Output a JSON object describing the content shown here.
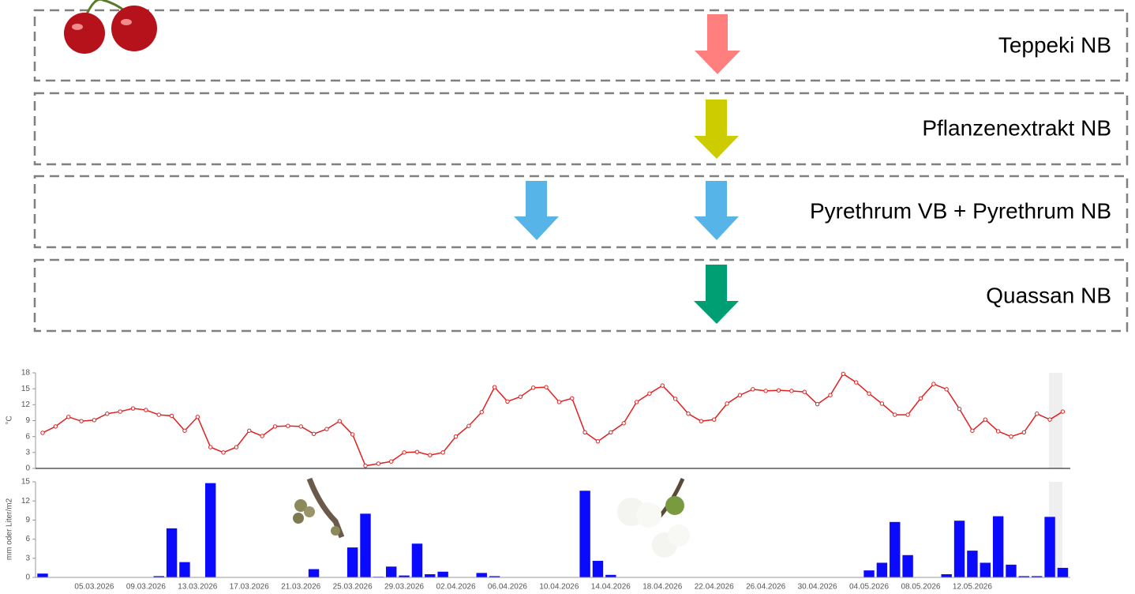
{
  "treatments": [
    {
      "label": "Teppeki NB"
    },
    {
      "label": "Pflanzenextrakt NB"
    },
    {
      "label": "Pyrethrum VB + Pyrethrum NB"
    },
    {
      "label": "Quassan NB"
    }
  ],
  "chart_data": [
    {
      "type": "line",
      "y_label": "°C",
      "color": "#e02020",
      "values": [
        6.7,
        7.9,
        9.7,
        8.9,
        9.1,
        10.3,
        10.7,
        11.3,
        11.0,
        10.1,
        9.9,
        7.1,
        9.7,
        4.0,
        3.0,
        4.0,
        7.1,
        6.1,
        7.9,
        8.0,
        7.9,
        6.5,
        7.4,
        8.9,
        6.4,
        0.5,
        0.9,
        1.3,
        3.0,
        3.1,
        2.5,
        3.0,
        6.0,
        8.0,
        10.6,
        15.3,
        12.6,
        13.5,
        15.2,
        15.3,
        12.5,
        13.2,
        6.8,
        5.1,
        6.8,
        8.5,
        12.5,
        14.1,
        15.6,
        13.1,
        10.3,
        8.9,
        9.2,
        12.2,
        13.8,
        14.9,
        14.6,
        14.7,
        14.6,
        14.4,
        12.1,
        13.8,
        17.8,
        16.2,
        14.1,
        12.2,
        10.1,
        10.1,
        13.2,
        15.9,
        14.9,
        11.2,
        7.1,
        9.2,
        7.0,
        6.0,
        6.8,
        10.3,
        9.2,
        10.7
      ],
      "ylim": [
        0,
        18
      ],
      "yticks": [
        0,
        3,
        6,
        9,
        12,
        15,
        18
      ]
    },
    {
      "type": "bar",
      "y_label": "mm oder Liter/m2",
      "color": "#0a0aff",
      "categories": [
        null,
        null,
        null,
        null,
        "05.03.2026",
        null,
        null,
        null,
        "09.03.2026",
        null,
        null,
        null,
        "13.03.2026",
        null,
        null,
        null,
        "17.03.2026",
        null,
        null,
        null,
        "21.03.2026",
        null,
        null,
        null,
        "25.03.2026",
        null,
        null,
        null,
        "29.03.2026",
        null,
        null,
        null,
        "02.04.2026",
        null,
        null,
        null,
        "06.04.2026",
        null,
        null,
        null,
        "10.04.2026",
        null,
        null,
        null,
        "14.04.2026",
        null,
        null,
        null,
        "18.04.2026",
        null,
        null,
        null,
        "22.04.2026",
        null,
        null,
        null,
        "26.04.2026",
        null,
        null,
        null,
        "30.04.2026",
        null,
        null,
        null,
        "04.05.2026",
        null,
        null,
        null,
        "08.05.2026",
        null,
        null,
        null,
        "12.05.2026",
        null,
        null,
        null,
        null,
        null,
        null,
        null
      ],
      "values": [
        0.6,
        0,
        0,
        0,
        0,
        0,
        0,
        0,
        0,
        0.2,
        7.7,
        2.4,
        0,
        14.8,
        0,
        0,
        0,
        0,
        0,
        0,
        0,
        1.3,
        0,
        0,
        4.7,
        10.0,
        0.1,
        1.7,
        0.3,
        5.3,
        0.5,
        0.9,
        0,
        0,
        0.7,
        0.2,
        0,
        0,
        0,
        0,
        0,
        0,
        13.6,
        2.6,
        0.4,
        0,
        0,
        0,
        0,
        0,
        0,
        0,
        0,
        0,
        0,
        0,
        0,
        0,
        0,
        0,
        0,
        0,
        0,
        0,
        1.1,
        2.3,
        8.7,
        3.5,
        0,
        0,
        0.5,
        8.9,
        4.2,
        2.3,
        9.6,
        2.0,
        0.2,
        0.2,
        9.5,
        1.5
      ],
      "ylim": [
        0,
        15
      ],
      "yticks": [
        0,
        3,
        6,
        9,
        12,
        15
      ]
    }
  ]
}
